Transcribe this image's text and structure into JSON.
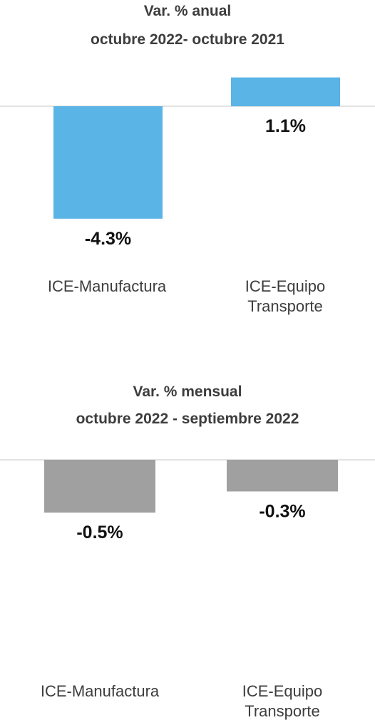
{
  "chart_data": [
    {
      "type": "bar",
      "title": "Var. % anual",
      "subtitle": "octubre 2022- octubre 2021",
      "categories": [
        "ICE-Manufactura",
        "ICE-Equipo\nTransporte"
      ],
      "values": [
        -4.3,
        1.1
      ],
      "value_labels": [
        "-4.3%",
        "1.1%"
      ],
      "color": "#5AB4E5",
      "ylim": [
        -4.3,
        1.1
      ],
      "grid": false,
      "legend": "none"
    },
    {
      "type": "bar",
      "title": "Var. % mensual",
      "subtitle": "octubre 2022 - septiembre 2022",
      "categories": [
        "ICE-Manufactura",
        "ICE-Equipo\nTransporte"
      ],
      "values": [
        -0.5,
        -0.3
      ],
      "value_labels": [
        "-0.5%",
        "-0.3%"
      ],
      "color": "#A0A0A0",
      "ylim": [
        -0.5,
        0
      ],
      "grid": false,
      "legend": "none"
    }
  ]
}
